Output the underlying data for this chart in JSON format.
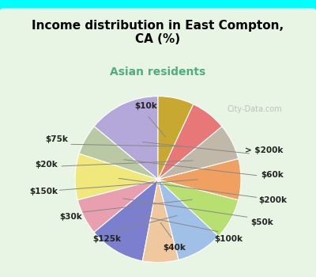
{
  "title": "Income distribution in East Compton,\nCA (%)",
  "subtitle": "Asian residents",
  "title_color": "#000000",
  "subtitle_color": "#4CAF7D",
  "background_outer": "#00FFFF",
  "background_inner": "#e8f5e5",
  "labels": [
    "> $200k",
    "$60k",
    "$200k",
    "$50k",
    "$100k",
    "$40k",
    "$125k",
    "$30k",
    "$150k",
    "$20k",
    "$75k",
    "$10k"
  ],
  "values": [
    14,
    6,
    9,
    7,
    11,
    7,
    9,
    8,
    8,
    7,
    7,
    7
  ],
  "colors": [
    "#b3a8d9",
    "#b8c9a3",
    "#f0e87a",
    "#e8a0b0",
    "#7b7fcd",
    "#f0c8a0",
    "#a0c0e8",
    "#b8e070",
    "#f0a060",
    "#c0b8a8",
    "#e87878",
    "#c8a830"
  ],
  "wedge_edge_color": "#ffffff",
  "label_fontsize": 7.5,
  "watermark": "City-Data.com"
}
